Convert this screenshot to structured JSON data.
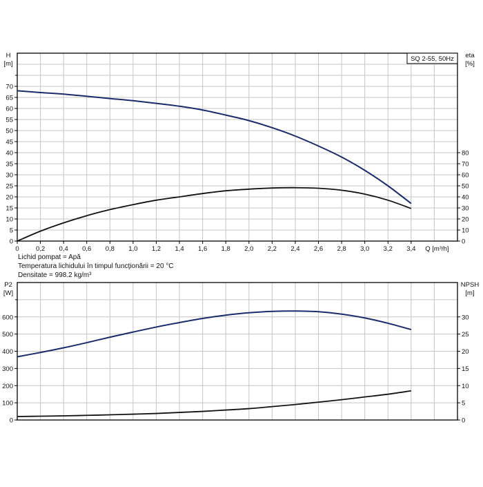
{
  "chart_data": [
    {
      "type": "line",
      "title": "SQ 2-55, 50Hz",
      "xlabel": "Q [m³/h]",
      "x": [
        0,
        0.2,
        0.4,
        0.6,
        0.8,
        1.0,
        1.2,
        1.4,
        1.6,
        1.8,
        2.0,
        2.2,
        2.4,
        2.6,
        2.8,
        3.0,
        3.2,
        3.4
      ],
      "xlim": [
        0,
        3.8
      ],
      "x_ticks": [
        "0",
        "0,2",
        "0,4",
        "0,6",
        "0,8",
        "1,0",
        "1,2",
        "1,4",
        "1,6",
        "1,8",
        "2,0",
        "2,2",
        "2,4",
        "2,6",
        "2,8",
        "3,0",
        "3,2",
        "3,4"
      ],
      "grid": true,
      "left_axis": {
        "label": "H",
        "unit": "[m]",
        "ylim": [
          0,
          85
        ],
        "ticks": [
          0,
          5,
          10,
          15,
          20,
          25,
          30,
          35,
          40,
          45,
          50,
          55,
          60,
          65,
          70
        ]
      },
      "right_axis": {
        "label": "eta",
        "unit": "[%]",
        "ylim": [
          0,
          170
        ],
        "ticks": [
          0,
          10,
          20,
          30,
          40,
          50,
          60,
          70,
          80
        ]
      },
      "series": [
        {
          "name": "H",
          "axis": "left",
          "color": "#1a2a6c",
          "values": [
            68,
            67.2,
            66.5,
            65.5,
            64.5,
            63.5,
            62.3,
            61,
            59.3,
            57,
            54.5,
            51.3,
            47.5,
            43,
            38,
            32,
            25,
            17
          ]
        },
        {
          "name": "eta",
          "axis": "right",
          "color": "#111111",
          "values": [
            0,
            9,
            16.5,
            23,
            28.5,
            33,
            37,
            40,
            43,
            45.5,
            47,
            48,
            48.3,
            47.8,
            46,
            42.5,
            37,
            29.5
          ]
        }
      ]
    },
    {
      "type": "line",
      "title": "",
      "xlabel": "Q [m³/h]",
      "x": [
        0,
        0.2,
        0.4,
        0.6,
        0.8,
        1.0,
        1.2,
        1.4,
        1.6,
        1.8,
        2.0,
        2.2,
        2.4,
        2.6,
        2.8,
        3.0,
        3.2,
        3.4
      ],
      "xlim": [
        0,
        3.8
      ],
      "grid": true,
      "left_axis": {
        "label": "P2",
        "unit": "[W]",
        "ylim": [
          0,
          800
        ],
        "ticks": [
          0,
          100,
          200,
          300,
          400,
          500,
          600
        ]
      },
      "right_axis": {
        "label": "NPSH",
        "unit": "[m]",
        "ylim": [
          0,
          40
        ],
        "ticks": [
          0,
          5,
          10,
          15,
          20,
          25,
          30
        ]
      },
      "series": [
        {
          "name": "P2",
          "axis": "left",
          "color": "#1a2a6c",
          "values": [
            368,
            393,
            420,
            450,
            482,
            512,
            541,
            567,
            591,
            610,
            624,
            632,
            634,
            630,
            616,
            594,
            563,
            526
          ]
        },
        {
          "name": "NPSH",
          "axis": "right",
          "color": "#111111",
          "values": [
            1.0,
            1.1,
            1.2,
            1.35,
            1.5,
            1.7,
            1.9,
            2.2,
            2.5,
            2.9,
            3.3,
            3.9,
            4.5,
            5.2,
            5.9,
            6.7,
            7.5,
            8.5
          ]
        }
      ]
    }
  ],
  "legend_box": {
    "label": "SQ 2-55, 50Hz"
  },
  "x_axis_label": "Q [m³/h]",
  "notes": {
    "liquid": "Lichid pompat = Apă",
    "temperature": "Temperatura lichidului în timpul funcţionării = 20 °C",
    "density": "Densitate = 998.2 kg/m³"
  },
  "colors": {
    "curve_primary": "#1a2a6c",
    "curve_secondary": "#111111",
    "grid": "#c4c4c4",
    "frame": "#000000"
  }
}
